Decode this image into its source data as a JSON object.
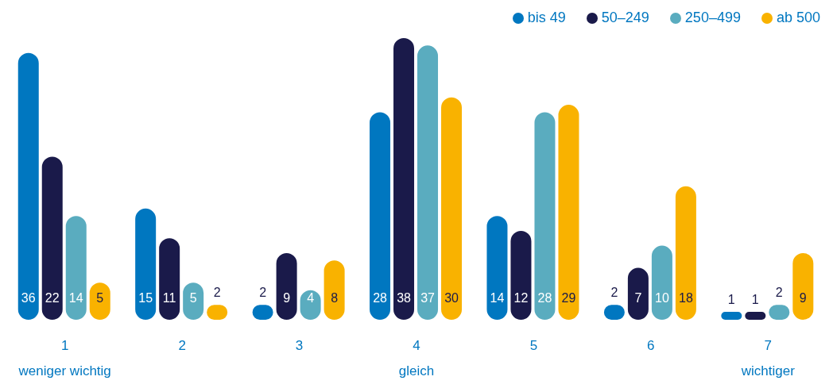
{
  "chart_data": {
    "type": "bar",
    "categories": [
      "1",
      "2",
      "3",
      "4",
      "5",
      "6",
      "7"
    ],
    "series": [
      {
        "name": "bis 49",
        "color": "#0077c0",
        "values": [
          36,
          15,
          2,
          28,
          14,
          2,
          1
        ]
      },
      {
        "name": "50–249",
        "color": "#1a1a4a",
        "values": [
          22,
          11,
          9,
          38,
          12,
          7,
          1
        ]
      },
      {
        "name": "250–499",
        "color": "#5aacbf",
        "values": [
          14,
          5,
          4,
          37,
          28,
          10,
          2
        ]
      },
      {
        "name": "ab 500",
        "color": "#f9b200",
        "values": [
          5,
          2,
          8,
          30,
          29,
          18,
          9
        ]
      }
    ],
    "data_labels": true,
    "legend": "top right",
    "grid": false,
    "annotations": [
      "weniger wichtig",
      "gleich",
      "wichtiger"
    ]
  }
}
